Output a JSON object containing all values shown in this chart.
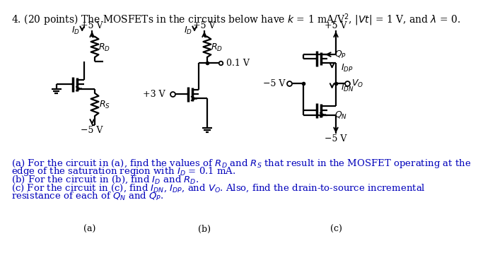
{
  "bg_color": "#ffffff",
  "title": "4. (20 points) The MOSFETs in the circuits below have $k$ = 1 mA/V$^2$, $|Vt|$ = 1 V, and $\\lambda$ = 0.",
  "title_fontsize": 10,
  "caption_color": "#0000bb",
  "caption_fontsize": 9.5,
  "line_color": "#000000",
  "lw": 1.6,
  "label_a": "(a)",
  "label_b": "(b)",
  "label_c": "(c)",
  "cap1": "(a) For the circuit in (a), find the values of $R_D$ and $R_S$ that result in the MOSFET operating at the",
  "cap2": "edge of the saturation region with $I_D$ = 0.1 mA.",
  "cap3": "(b) For the circuit in (b), find $I_D$ and $R_D$.",
  "cap4": "(c) For the circuit in (c), find $I_{DN}$, $I_{DP}$, and $V_O$. Also, find the drain-to-source incremental",
  "cap5": "resistance of each of $Q_N$ and $Q_P$."
}
